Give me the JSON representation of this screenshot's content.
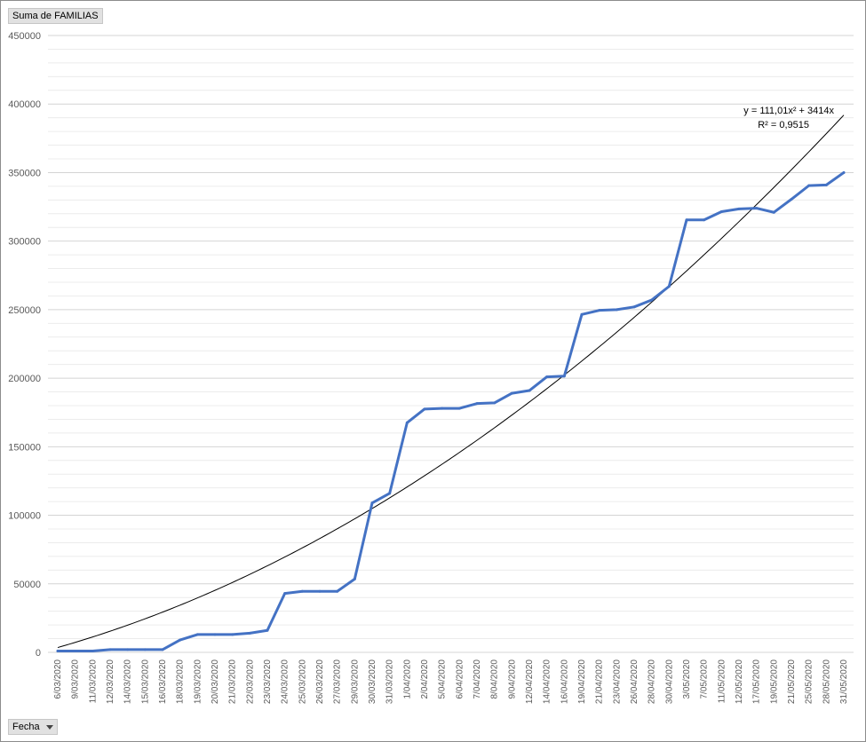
{
  "pivot": {
    "value_field": "Suma de FAMILIAS",
    "axis_field": "Fecha",
    "dropdown_icon": "dropdown-arrow-icon"
  },
  "chart_data": {
    "type": "line",
    "title": "",
    "xlabel": "",
    "ylabel": "",
    "ylim": [
      0,
      450000
    ],
    "yticks": [
      0,
      50000,
      100000,
      150000,
      200000,
      250000,
      300000,
      350000,
      400000,
      450000
    ],
    "grid": true,
    "categories": [
      "6/03/2020",
      "9/03/2020",
      "11/03/2020",
      "12/03/2020",
      "14/03/2020",
      "15/03/2020",
      "16/03/2020",
      "18/03/2020",
      "19/03/2020",
      "20/03/2020",
      "21/03/2020",
      "22/03/2020",
      "23/03/2020",
      "24/03/2020",
      "25/03/2020",
      "26/03/2020",
      "27/03/2020",
      "29/03/2020",
      "30/03/2020",
      "31/03/2020",
      "1/04/2020",
      "2/04/2020",
      "5/04/2020",
      "6/04/2020",
      "7/04/2020",
      "8/04/2020",
      "9/04/2020",
      "12/04/2020",
      "14/04/2020",
      "16/04/2020",
      "19/04/2020",
      "21/04/2020",
      "23/04/2020",
      "26/04/2020",
      "28/04/2020",
      "30/04/2020",
      "3/05/2020",
      "7/05/2020",
      "11/05/2020",
      "12/05/2020",
      "17/05/2020",
      "19/05/2020",
      "21/05/2020",
      "25/05/2020",
      "28/05/2020",
      "31/05/2020"
    ],
    "series": [
      {
        "color": "#4472c4",
        "values": [
          1000,
          1000,
          1000,
          2000,
          2000,
          2000,
          2000,
          9000,
          13000,
          13000,
          13000,
          14000,
          16000,
          43000,
          44500,
          44500,
          44500,
          53500,
          109000,
          116000,
          167500,
          177500,
          178000,
          178000,
          181500,
          182000,
          189000,
          191000,
          201000,
          201500,
          246500,
          249500,
          250000,
          252000,
          257000,
          267000,
          315500,
          315500,
          321500,
          323500,
          324000,
          321000,
          330500,
          340500,
          341000,
          350000
        ]
      }
    ],
    "trendline": {
      "type": "polynomial",
      "color": "#000000",
      "a": 111.01,
      "b": 3414,
      "equation": "y = 111,01x² + 3414x",
      "r2": "R² = 0,9515"
    }
  }
}
